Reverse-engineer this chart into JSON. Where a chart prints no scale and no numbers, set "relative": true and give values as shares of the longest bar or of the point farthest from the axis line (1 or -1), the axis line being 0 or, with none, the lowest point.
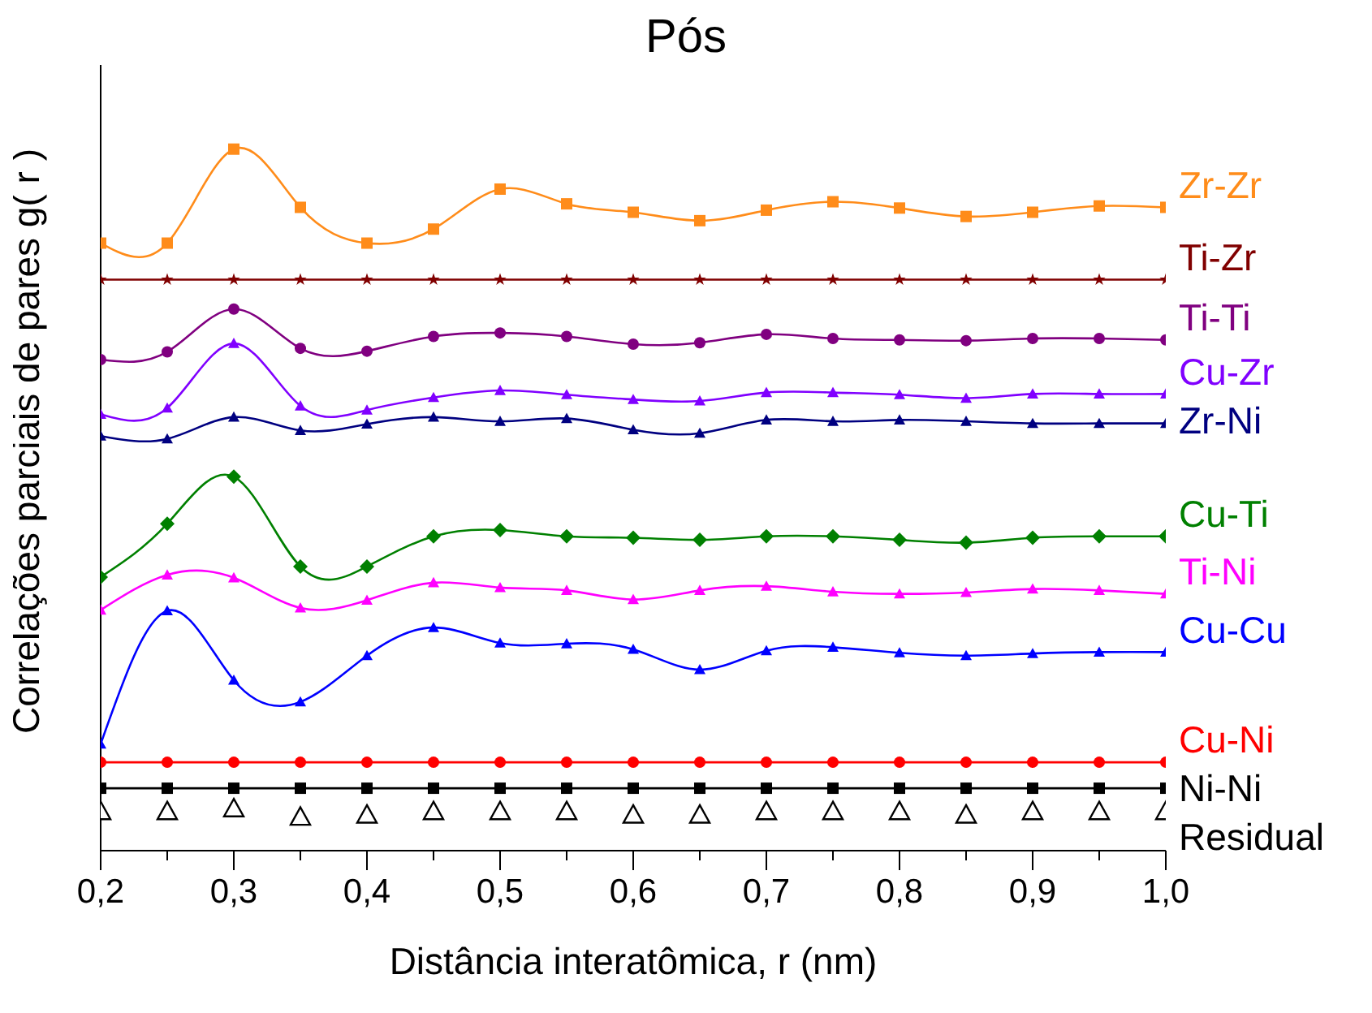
{
  "chart_data": {
    "type": "line",
    "title": "Pós",
    "xlabel": "Distância interatômica, r (nm)",
    "ylabel": "Correlações parciais de pares g( r )",
    "relative": true,
    "x": [
      0.2,
      0.25,
      0.3,
      0.35,
      0.4,
      0.45,
      0.5,
      0.55,
      0.6,
      0.65,
      0.7,
      0.75,
      0.8,
      0.85,
      0.9,
      0.95,
      1.0
    ],
    "xlim": [
      0.2,
      1.0
    ],
    "xticks": [
      {
        "value": 0.2,
        "label": "0,2"
      },
      {
        "value": 0.25,
        "label": null
      },
      {
        "value": 0.3,
        "label": "0,3"
      },
      {
        "value": 0.35,
        "label": null
      },
      {
        "value": 0.4,
        "label": "0,4"
      },
      {
        "value": 0.45,
        "label": null
      },
      {
        "value": 0.5,
        "label": "0,5"
      },
      {
        "value": 0.55,
        "label": null
      },
      {
        "value": 0.6,
        "label": "0,6"
      },
      {
        "value": 0.65,
        "label": null
      },
      {
        "value": 0.7,
        "label": "0,7"
      },
      {
        "value": 0.75,
        "label": null
      },
      {
        "value": 0.8,
        "label": "0,8"
      },
      {
        "value": 0.85,
        "label": null
      },
      {
        "value": 0.9,
        "label": "0,9"
      },
      {
        "value": 0.95,
        "label": null
      },
      {
        "value": 1.0,
        "label": "1,0"
      }
    ],
    "line_style": "solid",
    "series": [
      {
        "name": "Zr-Zr",
        "color": "#ff8c1a",
        "marker": "square",
        "values": [
          0.866,
          0.866,
          1.0,
          0.917,
          0.866,
          0.886,
          0.943,
          0.922,
          0.91,
          0.898,
          0.913,
          0.925,
          0.916,
          0.904,
          0.91,
          0.919,
          0.917
        ]
      },
      {
        "name": "Ti-Zr",
        "color": "#800000",
        "marker": "star",
        "values": [
          0.814,
          0.814,
          0.814,
          0.814,
          0.814,
          0.814,
          0.814,
          0.814,
          0.814,
          0.814,
          0.814,
          0.814,
          0.814,
          0.814,
          0.814,
          0.814,
          0.814
        ]
      },
      {
        "name": "Ti-Ti",
        "color": "#800080",
        "marker": "circle",
        "values": [
          0.7,
          0.711,
          0.772,
          0.716,
          0.712,
          0.733,
          0.738,
          0.733,
          0.722,
          0.724,
          0.736,
          0.73,
          0.728,
          0.727,
          0.73,
          0.73,
          0.728
        ]
      },
      {
        "name": "Cu-Zr",
        "color": "#8000ff",
        "marker": "triangle",
        "values": [
          0.622,
          0.631,
          0.723,
          0.634,
          0.628,
          0.646,
          0.656,
          0.65,
          0.643,
          0.641,
          0.653,
          0.653,
          0.65,
          0.645,
          0.651,
          0.651,
          0.651
        ]
      },
      {
        "name": "Zr-Ni",
        "color": "#000080",
        "marker": "triangle",
        "values": [
          0.591,
          0.587,
          0.618,
          0.599,
          0.608,
          0.618,
          0.612,
          0.616,
          0.6,
          0.595,
          0.614,
          0.612,
          0.614,
          0.612,
          0.609,
          0.609,
          0.609
        ]
      },
      {
        "name": "Cu-Ti",
        "color": "#008000",
        "marker": "diamond",
        "values": [
          0.39,
          0.466,
          0.533,
          0.405,
          0.405,
          0.448,
          0.457,
          0.448,
          0.446,
          0.443,
          0.448,
          0.448,
          0.443,
          0.439,
          0.446,
          0.448,
          0.448
        ]
      },
      {
        "name": "Ti-Ni",
        "color": "#ff00ff",
        "marker": "triangle",
        "values": [
          0.343,
          0.393,
          0.389,
          0.346,
          0.357,
          0.382,
          0.375,
          0.371,
          0.358,
          0.371,
          0.377,
          0.369,
          0.366,
          0.368,
          0.373,
          0.371,
          0.366
        ]
      },
      {
        "name": "Cu-Cu",
        "color": "#0000ff",
        "marker": "triangle",
        "values": [
          0.152,
          0.342,
          0.243,
          0.212,
          0.278,
          0.318,
          0.296,
          0.295,
          0.287,
          0.258,
          0.285,
          0.29,
          0.282,
          0.278,
          0.281,
          0.283,
          0.283
        ]
      },
      {
        "name": "Cu-Ni",
        "color": "#ff0000",
        "marker": "circle",
        "values": [
          0.126,
          0.126,
          0.126,
          0.126,
          0.126,
          0.126,
          0.126,
          0.126,
          0.126,
          0.126,
          0.126,
          0.126,
          0.126,
          0.126,
          0.126,
          0.126,
          0.126
        ]
      },
      {
        "name": "Ni-Ni",
        "color": "#000000",
        "marker": "square",
        "values": [
          0.089,
          0.089,
          0.089,
          0.089,
          0.089,
          0.089,
          0.089,
          0.089,
          0.089,
          0.089,
          0.089,
          0.089,
          0.089,
          0.089,
          0.089,
          0.089,
          0.089
        ]
      },
      {
        "name": "Residual",
        "type": "scatter",
        "color": "#000000",
        "marker": "triangle",
        "values": [
          0.056,
          0.056,
          0.06,
          0.048,
          0.051,
          0.056,
          0.056,
          0.056,
          0.051,
          0.051,
          0.056,
          0.056,
          0.056,
          0.051,
          0.056,
          0.056,
          0.056
        ]
      }
    ]
  }
}
